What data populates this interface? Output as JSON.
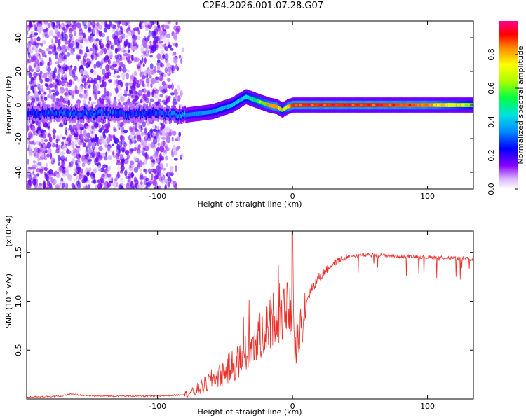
{
  "title": "C2E4.2026.001.07.28.G07",
  "chart_data": [
    {
      "type": "heatmap",
      "xlabel": "Height of straight line (km)",
      "ylabel": "Frequency (Hz)",
      "xlim": [
        -197,
        134
      ],
      "ylim": [
        -50,
        50
      ],
      "xticks": [
        -100,
        0,
        100
      ],
      "yticks": [
        -40,
        -20,
        0,
        20,
        40
      ],
      "colorbar": {
        "label": "Normalized spectral amplitude",
        "range": [
          0.0,
          1.0
        ],
        "ticks": [
          0.0,
          0.2,
          0.4,
          0.6,
          0.8
        ]
      },
      "ridge": {
        "x": [
          -197,
          -150,
          -100,
          -80,
          -60,
          -45,
          -35,
          -25,
          -18,
          -12,
          -8,
          -4,
          0,
          20,
          60,
          100,
          134
        ],
        "freq": [
          -5,
          -5,
          -5,
          -6,
          -4,
          0,
          5,
          2,
          0,
          -1,
          -3,
          -1,
          0,
          0,
          0,
          0,
          0
        ],
        "amplitude": [
          0.3,
          0.35,
          0.3,
          0.45,
          0.5,
          0.55,
          0.6,
          0.7,
          0.8,
          0.85,
          0.6,
          0.8,
          0.9,
          0.9,
          0.9,
          0.85,
          0.6
        ]
      },
      "noise_region": {
        "x_start": -197,
        "x_end": -80,
        "amplitude": 0.1
      }
    },
    {
      "type": "line",
      "xlabel": "Height of straight line (km)",
      "ylabel": "SNR (10 * v/v)",
      "y_multiplier": "(x10^4)",
      "xlim": [
        -197,
        134
      ],
      "ylim": [
        0.0,
        1.72
      ],
      "xticks": [
        -100,
        0,
        100
      ],
      "yticks": [
        0.5,
        1.0,
        1.5
      ],
      "color": "#e8302a",
      "series": [
        {
          "name": "SNR",
          "x": [
            -197,
            -170,
            -165,
            -150,
            -140,
            -120,
            -100,
            -85,
            -75,
            -70,
            -65,
            -60,
            -55,
            -50,
            -45,
            -40,
            -35,
            -30,
            -25,
            -20,
            -15,
            -12,
            -10,
            -8,
            -6,
            -4,
            -2,
            0,
            2,
            5,
            8,
            10,
            15,
            20,
            25,
            30,
            35,
            40,
            45,
            50,
            60,
            70,
            80,
            90,
            100,
            110,
            120,
            134
          ],
          "values": [
            0.02,
            0.03,
            0.05,
            0.03,
            0.03,
            0.03,
            0.03,
            0.04,
            0.06,
            0.1,
            0.14,
            0.2,
            0.24,
            0.28,
            0.34,
            0.38,
            0.45,
            0.55,
            0.62,
            0.72,
            0.8,
            0.9,
            0.85,
            0.82,
            0.9,
            0.95,
            0.9,
            0.85,
            0.45,
            0.75,
            0.85,
            1.0,
            1.15,
            1.25,
            1.32,
            1.38,
            1.42,
            1.45,
            1.46,
            1.47,
            1.47,
            1.47,
            1.46,
            1.46,
            1.45,
            1.45,
            1.44,
            1.43
          ]
        }
      ]
    }
  ]
}
